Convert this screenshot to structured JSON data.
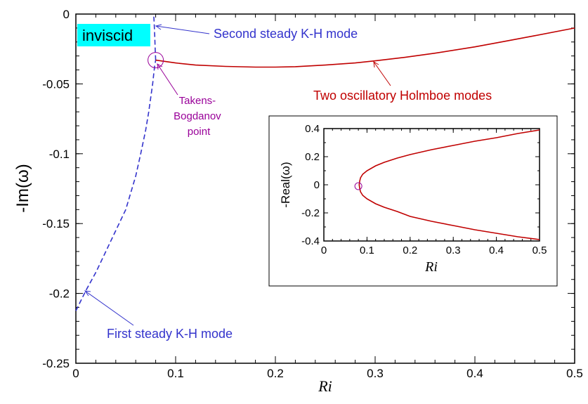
{
  "chart_data": [
    {
      "type": "line",
      "xlabel": "Ri",
      "ylabel": "-Im(ω)",
      "xlim": [
        0,
        0.5
      ],
      "ylim": [
        -0.25,
        0
      ],
      "x_ticks": [
        "0",
        "0.1",
        "0.2",
        "0.3",
        "0.4",
        "0.5"
      ],
      "y_ticks": [
        "0",
        "-0.05",
        "-0.1",
        "-0.15",
        "-0.2",
        "-0.25"
      ],
      "grid": false,
      "series": [
        {
          "name": "First steady K-H mode",
          "color": "#3333cc",
          "dashed": true,
          "x": [
            0.0,
            0.01,
            0.02,
            0.03,
            0.04,
            0.05,
            0.06,
            0.065,
            0.07,
            0.073,
            0.075,
            0.077,
            0.078,
            0.079,
            0.08
          ],
          "y": [
            -0.2125,
            -0.198,
            -0.185,
            -0.17,
            -0.155,
            -0.14,
            -0.116,
            -0.1,
            -0.083,
            -0.07,
            -0.06,
            -0.05,
            -0.043,
            -0.037,
            -0.033
          ]
        },
        {
          "name": "Second steady K-H mode",
          "color": "#3333cc",
          "dashed": true,
          "x": [
            0.08,
            0.0795,
            0.079,
            0.0785,
            0.078
          ],
          "y": [
            -0.033,
            -0.025,
            -0.015,
            -0.007,
            0.0
          ]
        },
        {
          "name": "Two oscillatory Holmboe modes",
          "color": "#c00000",
          "dashed": false,
          "x": [
            0.08,
            0.1,
            0.12,
            0.15,
            0.18,
            0.2,
            0.22,
            0.25,
            0.28,
            0.3,
            0.33,
            0.36,
            0.4,
            0.43,
            0.46,
            0.5
          ],
          "y": [
            -0.033,
            -0.035,
            -0.0365,
            -0.0375,
            -0.038,
            -0.038,
            -0.0377,
            -0.0365,
            -0.035,
            -0.0335,
            -0.031,
            -0.028,
            -0.0235,
            -0.0195,
            -0.0155,
            -0.01
          ]
        }
      ],
      "annotations": [
        {
          "text": "inviscid",
          "background": "#00ffff"
        },
        {
          "text": "Second steady K-H mode",
          "color": "#3333cc"
        },
        {
          "text": "First steady K-H mode",
          "color": "#3333cc"
        },
        {
          "text": "Two oscillatory Holmboe modes",
          "color": "#c00000"
        },
        {
          "text": "Takens-\nBogdanov\npoint",
          "color": "#990099"
        }
      ],
      "markers": [
        {
          "name": "Takens-Bogdanov point",
          "x": 0.08,
          "y": -0.033,
          "shape": "circle",
          "color": "#990099"
        }
      ]
    },
    {
      "type": "line",
      "xlabel": "Ri",
      "ylabel": "-Real(ω)",
      "xlim": [
        0,
        0.5
      ],
      "ylim": [
        -0.4,
        0.4
      ],
      "x_ticks": [
        "0",
        "0.1",
        "0.2",
        "0.3",
        "0.4",
        "0.5"
      ],
      "y_ticks": [
        "0.4",
        "0.2",
        "0",
        "-0.2",
        "-0.4"
      ],
      "grid": false,
      "series": [
        {
          "color": "#c00000",
          "x": [
            0.5,
            0.45,
            0.4,
            0.35,
            0.3,
            0.25,
            0.2,
            0.17,
            0.14,
            0.12,
            0.1,
            0.09,
            0.085,
            0.083,
            0.082,
            0.083,
            0.085,
            0.09,
            0.1,
            0.12,
            0.14,
            0.17,
            0.2,
            0.25,
            0.3,
            0.35,
            0.4,
            0.45,
            0.5
          ],
          "y": [
            0.39,
            0.365,
            0.335,
            0.31,
            0.28,
            0.25,
            0.215,
            0.19,
            0.16,
            0.135,
            0.1,
            0.075,
            0.05,
            0.025,
            0.0,
            -0.025,
            -0.05,
            -0.075,
            -0.1,
            -0.135,
            -0.16,
            -0.19,
            -0.225,
            -0.26,
            -0.29,
            -0.32,
            -0.345,
            -0.37,
            -0.39
          ]
        }
      ],
      "markers": [
        {
          "x": 0.08,
          "y": -0.01,
          "shape": "circle",
          "color": "#990099"
        }
      ]
    }
  ]
}
